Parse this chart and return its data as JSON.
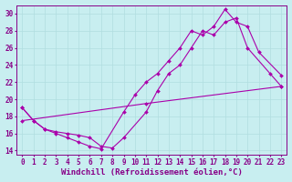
{
  "xlabel": "Windchill (Refroidissement éolien,°C)",
  "ylabel": "",
  "background_color": "#c8eef0",
  "line_color": "#aa00aa",
  "grid_color": "#b0dde0",
  "xlim": [
    -0.5,
    23.5
  ],
  "ylim": [
    13.5,
    31.0
  ],
  "yticks": [
    14,
    16,
    18,
    20,
    22,
    24,
    26,
    28,
    30
  ],
  "xticks": [
    0,
    1,
    2,
    3,
    4,
    5,
    6,
    7,
    8,
    9,
    10,
    11,
    12,
    13,
    14,
    15,
    16,
    17,
    18,
    19,
    20,
    21,
    22,
    23
  ],
  "line1_y": [
    19.0,
    17.5,
    16.5,
    16.0,
    15.5,
    15.0,
    14.5,
    14.2,
    18.5,
    20.5,
    22.0,
    23.0,
    24.5,
    26.0,
    28.0,
    27.5,
    28.5,
    30.5,
    29.0,
    28.5,
    25.5,
    22.8
  ],
  "line1_x": [
    0,
    1,
    2,
    3,
    4,
    5,
    6,
    7,
    9,
    10,
    11,
    12,
    13,
    14,
    15,
    16,
    17,
    18,
    19,
    20,
    21,
    23
  ],
  "line2_y": [
    19.0,
    17.5,
    16.5,
    16.2,
    16.0,
    15.8,
    15.5,
    14.5,
    14.3,
    15.5,
    18.5,
    21.0,
    23.0,
    24.0,
    26.0,
    28.0,
    27.5,
    29.0,
    29.5,
    26.0,
    23.0,
    21.5
  ],
  "line2_x": [
    0,
    1,
    2,
    3,
    4,
    5,
    6,
    7,
    8,
    9,
    11,
    12,
    13,
    14,
    15,
    16,
    17,
    18,
    19,
    20,
    22,
    23
  ],
  "line3_y": [
    17.5,
    19.5,
    21.5
  ],
  "line3_x": [
    0,
    11,
    23
  ],
  "font_color": "#880088",
  "tick_fontsize": 5.5,
  "label_fontsize": 6.5
}
